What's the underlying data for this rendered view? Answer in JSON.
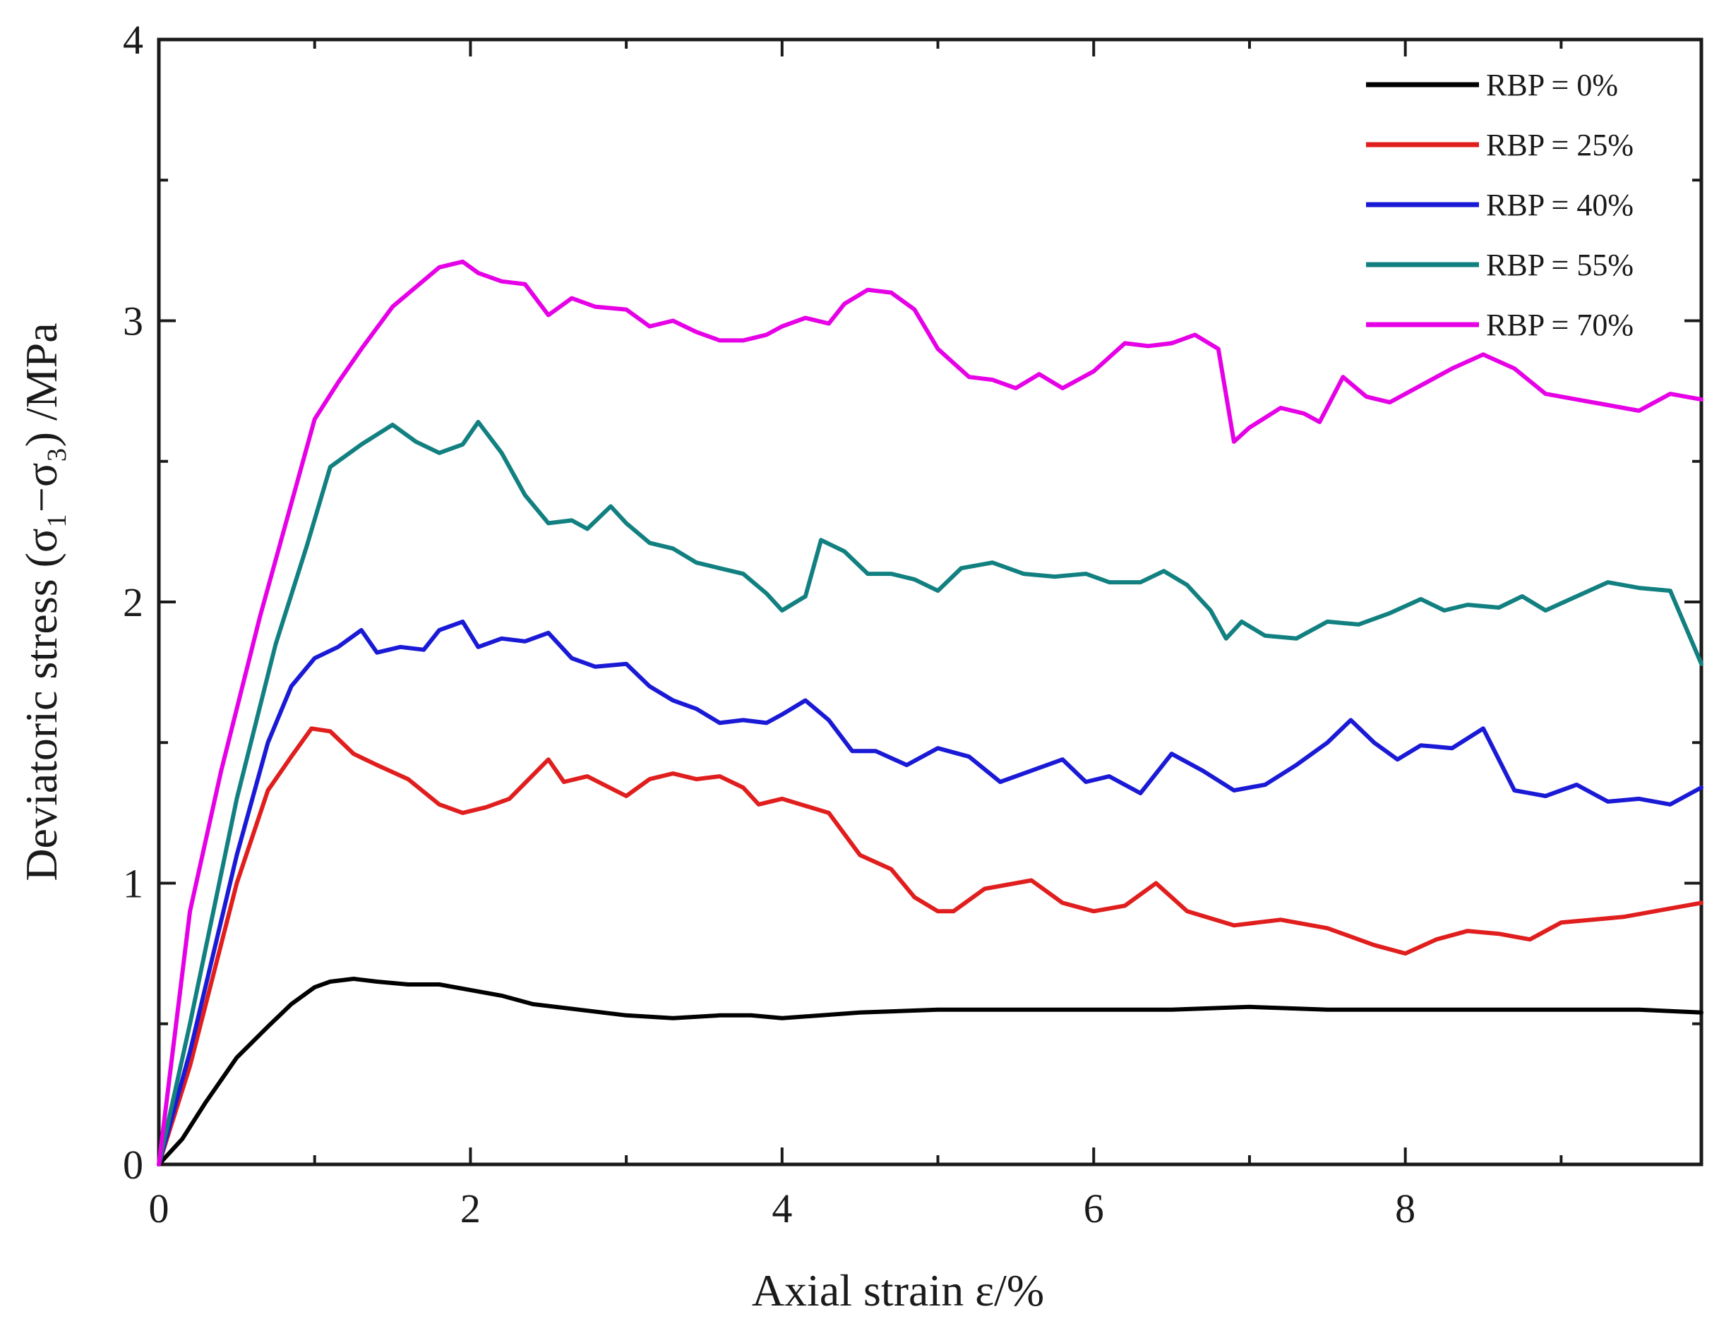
{
  "chart_data": {
    "type": "line",
    "title": "",
    "xlabel": "Axial strain ε/%",
    "ylabel": "Deviatoric stress (σ₁−σ₃) /MPa",
    "xlim": [
      0,
      9.9
    ],
    "ylim": [
      0,
      4
    ],
    "xticks": [
      0,
      2,
      4,
      6,
      8
    ],
    "yticks": [
      0,
      1,
      2,
      3,
      4
    ],
    "grid": false,
    "legend_position": "top-right",
    "series": [
      {
        "name": "RBP = 0%",
        "color": "#000000",
        "x": [
          0,
          0.15,
          0.3,
          0.5,
          0.7,
          0.85,
          1.0,
          1.1,
          1.25,
          1.4,
          1.6,
          1.8,
          2.0,
          2.2,
          2.4,
          2.7,
          3.0,
          3.3,
          3.6,
          3.8,
          4.0,
          4.5,
          5.0,
          5.5,
          6.0,
          6.5,
          7.0,
          7.5,
          8.0,
          8.5,
          9.0,
          9.5,
          9.9
        ],
        "values": [
          0,
          0.09,
          0.22,
          0.38,
          0.49,
          0.57,
          0.63,
          0.65,
          0.66,
          0.65,
          0.64,
          0.64,
          0.62,
          0.6,
          0.57,
          0.55,
          0.53,
          0.52,
          0.53,
          0.53,
          0.52,
          0.54,
          0.55,
          0.55,
          0.55,
          0.55,
          0.56,
          0.55,
          0.55,
          0.55,
          0.55,
          0.55,
          0.54
        ]
      },
      {
        "name": "RBP = 25%",
        "color": "#e01e1e",
        "x": [
          0,
          0.2,
          0.5,
          0.7,
          0.85,
          0.98,
          1.1,
          1.25,
          1.4,
          1.6,
          1.8,
          1.95,
          2.1,
          2.25,
          2.5,
          2.6,
          2.75,
          3.0,
          3.15,
          3.3,
          3.45,
          3.6,
          3.75,
          3.85,
          4.0,
          4.3,
          4.5,
          4.7,
          4.85,
          5.0,
          5.1,
          5.3,
          5.6,
          5.8,
          6.0,
          6.2,
          6.4,
          6.6,
          6.9,
          7.2,
          7.5,
          7.8,
          8.0,
          8.2,
          8.4,
          8.6,
          8.8,
          9.0,
          9.2,
          9.4,
          9.6,
          9.9
        ],
        "values": [
          0,
          0.35,
          1.0,
          1.33,
          1.45,
          1.55,
          1.54,
          1.46,
          1.42,
          1.37,
          1.28,
          1.25,
          1.27,
          1.3,
          1.44,
          1.36,
          1.38,
          1.31,
          1.37,
          1.39,
          1.37,
          1.38,
          1.34,
          1.28,
          1.3,
          1.25,
          1.1,
          1.05,
          0.95,
          0.9,
          0.9,
          0.98,
          1.01,
          0.93,
          0.9,
          0.92,
          1.0,
          0.9,
          0.85,
          0.87,
          0.84,
          0.78,
          0.75,
          0.8,
          0.83,
          0.82,
          0.8,
          0.86,
          0.87,
          0.88,
          0.9,
          0.93
        ]
      },
      {
        "name": "RBP = 40%",
        "color": "#1a1ad6",
        "x": [
          0,
          0.2,
          0.5,
          0.7,
          0.85,
          1.0,
          1.15,
          1.3,
          1.4,
          1.55,
          1.7,
          1.8,
          1.95,
          2.05,
          2.2,
          2.35,
          2.5,
          2.65,
          2.8,
          3.0,
          3.15,
          3.3,
          3.45,
          3.6,
          3.75,
          3.9,
          4.0,
          4.15,
          4.3,
          4.45,
          4.6,
          4.8,
          5.0,
          5.2,
          5.4,
          5.6,
          5.8,
          5.95,
          6.1,
          6.3,
          6.5,
          6.7,
          6.9,
          7.1,
          7.3,
          7.5,
          7.65,
          7.8,
          7.95,
          8.1,
          8.3,
          8.5,
          8.7,
          8.9,
          9.1,
          9.3,
          9.5,
          9.7,
          9.9
        ],
        "values": [
          0,
          0.4,
          1.1,
          1.5,
          1.7,
          1.8,
          1.84,
          1.9,
          1.82,
          1.84,
          1.83,
          1.9,
          1.93,
          1.84,
          1.87,
          1.86,
          1.89,
          1.8,
          1.77,
          1.78,
          1.7,
          1.65,
          1.62,
          1.57,
          1.58,
          1.57,
          1.6,
          1.65,
          1.58,
          1.47,
          1.47,
          1.42,
          1.48,
          1.45,
          1.36,
          1.4,
          1.44,
          1.36,
          1.38,
          1.32,
          1.46,
          1.4,
          1.33,
          1.35,
          1.42,
          1.5,
          1.58,
          1.5,
          1.44,
          1.49,
          1.48,
          1.55,
          1.33,
          1.31,
          1.35,
          1.29,
          1.3,
          1.28,
          1.34
        ]
      },
      {
        "name": "RBP = 55%",
        "color": "#128080",
        "x": [
          0,
          0.2,
          0.5,
          0.75,
          0.95,
          1.1,
          1.3,
          1.5,
          1.65,
          1.8,
          1.95,
          2.05,
          2.2,
          2.35,
          2.5,
          2.65,
          2.75,
          2.9,
          3.0,
          3.15,
          3.3,
          3.45,
          3.6,
          3.75,
          3.9,
          4.0,
          4.15,
          4.25,
          4.4,
          4.55,
          4.7,
          4.85,
          5.0,
          5.15,
          5.35,
          5.55,
          5.75,
          5.95,
          6.1,
          6.3,
          6.45,
          6.6,
          6.75,
          6.85,
          6.95,
          7.1,
          7.3,
          7.5,
          7.7,
          7.9,
          8.1,
          8.25,
          8.4,
          8.6,
          8.75,
          8.9,
          9.1,
          9.3,
          9.5,
          9.7,
          9.9
        ],
        "values": [
          0,
          0.5,
          1.3,
          1.85,
          2.2,
          2.48,
          2.56,
          2.63,
          2.57,
          2.53,
          2.56,
          2.64,
          2.53,
          2.38,
          2.28,
          2.29,
          2.26,
          2.34,
          2.28,
          2.21,
          2.19,
          2.14,
          2.12,
          2.1,
          2.03,
          1.97,
          2.02,
          2.22,
          2.18,
          2.1,
          2.1,
          2.08,
          2.04,
          2.12,
          2.14,
          2.1,
          2.09,
          2.1,
          2.07,
          2.07,
          2.11,
          2.06,
          1.97,
          1.87,
          1.93,
          1.88,
          1.87,
          1.93,
          1.92,
          1.96,
          2.01,
          1.97,
          1.99,
          1.98,
          2.02,
          1.97,
          2.02,
          2.07,
          2.05,
          2.04,
          1.78
        ]
      },
      {
        "name": "RBP = 70%",
        "color": "#e600e6",
        "x": [
          0,
          0.2,
          0.4,
          0.65,
          0.85,
          1.0,
          1.15,
          1.3,
          1.5,
          1.65,
          1.8,
          1.95,
          2.05,
          2.2,
          2.35,
          2.5,
          2.65,
          2.8,
          3.0,
          3.15,
          3.3,
          3.45,
          3.6,
          3.75,
          3.9,
          4.0,
          4.15,
          4.3,
          4.4,
          4.55,
          4.7,
          4.85,
          5.0,
          5.2,
          5.35,
          5.5,
          5.65,
          5.8,
          6.0,
          6.2,
          6.35,
          6.5,
          6.65,
          6.8,
          6.9,
          7.0,
          7.2,
          7.35,
          7.45,
          7.6,
          7.75,
          7.9,
          8.1,
          8.3,
          8.5,
          8.7,
          8.9,
          9.1,
          9.3,
          9.5,
          9.7,
          9.9
        ],
        "values": [
          0,
          0.9,
          1.4,
          1.95,
          2.35,
          2.65,
          2.78,
          2.9,
          3.05,
          3.12,
          3.19,
          3.21,
          3.17,
          3.14,
          3.13,
          3.02,
          3.08,
          3.05,
          3.04,
          2.98,
          3.0,
          2.96,
          2.93,
          2.93,
          2.95,
          2.98,
          3.01,
          2.99,
          3.06,
          3.11,
          3.1,
          3.04,
          2.9,
          2.8,
          2.79,
          2.76,
          2.81,
          2.76,
          2.82,
          2.92,
          2.91,
          2.92,
          2.95,
          2.9,
          2.57,
          2.62,
          2.69,
          2.67,
          2.64,
          2.8,
          2.73,
          2.71,
          2.77,
          2.83,
          2.88,
          2.83,
          2.74,
          2.72,
          2.7,
          2.68,
          2.74,
          2.72
        ]
      }
    ]
  }
}
